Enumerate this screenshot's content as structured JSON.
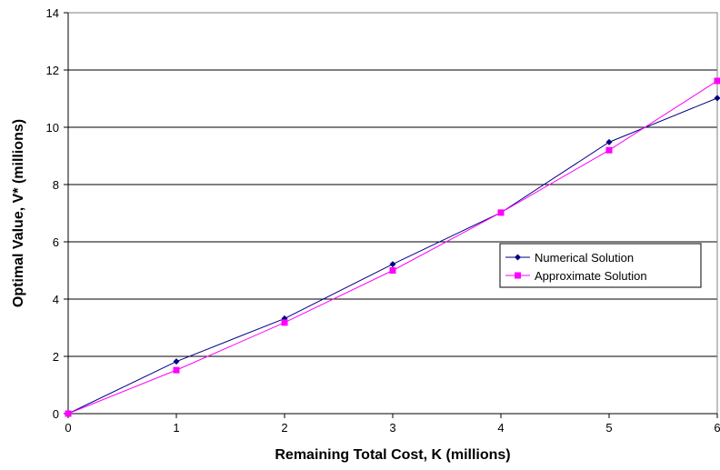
{
  "chart_data": {
    "type": "line",
    "title": "",
    "xlabel": "Remaining Total Cost, K (millions)",
    "ylabel": "Optimal Value, V* (millions)",
    "xlim": [
      0,
      6
    ],
    "ylim": [
      0,
      14
    ],
    "x_ticks": [
      "0",
      "1",
      "2",
      "3",
      "4",
      "5",
      "6"
    ],
    "y_ticks": [
      "0",
      "2",
      "4",
      "6",
      "8",
      "10",
      "12",
      "14"
    ],
    "grid": "horizontal",
    "legend_position": "right",
    "x": [
      0,
      1,
      2,
      3,
      4,
      5,
      6
    ],
    "series": [
      {
        "name": "Numerical Solution",
        "color": "#000080",
        "marker": "diamond",
        "values": [
          0,
          1.82,
          3.32,
          5.22,
          7.02,
          9.48,
          11.02
        ]
      },
      {
        "name": "Approximate Solution",
        "color": "#ff00ff",
        "marker": "square",
        "values": [
          0,
          1.52,
          3.18,
          5.0,
          7.02,
          9.2,
          11.62
        ]
      }
    ]
  }
}
